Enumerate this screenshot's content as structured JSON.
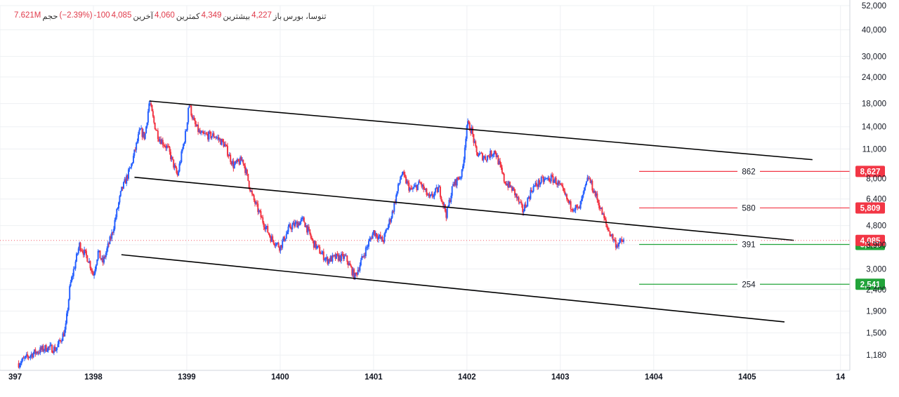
{
  "legend": {
    "symbol": "تنوسا، بورس",
    "open_label": "باز",
    "open": "4,227",
    "high_label": "بیشترین",
    "high": "4,349",
    "low_label": "کمترین",
    "low": "4,060",
    "close_label": "آخرین",
    "close": "4,085",
    "change": "-100",
    "change_pct": "(−2.39%)",
    "volume_label": "حجم",
    "volume": "7.621M"
  },
  "colors": {
    "up": "#2962ff",
    "down": "#f23645",
    "resistance": "#f23645",
    "support": "#22a43a",
    "channel": "#000000",
    "axis_text": "#131722",
    "grid": "#eef0f3"
  },
  "chart_data": {
    "type": "candlestick",
    "y_scale": "log",
    "ylim": [
      1000,
      52000
    ],
    "y_ticks": [
      "1,180",
      "1,500",
      "1,900",
      "2,400",
      "3,000",
      "3,900",
      "4,800",
      "6,400",
      "8,000",
      "11,000",
      "14,000",
      "18,000",
      "24,000",
      "30,000",
      "40,000",
      "52,000"
    ],
    "y_tick_values": [
      1180,
      1500,
      1900,
      2400,
      3000,
      3900,
      4800,
      6400,
      8000,
      11000,
      14000,
      18000,
      24000,
      30000,
      40000,
      52000
    ],
    "x_ticks": [
      "397",
      "1398",
      "1399",
      "1400",
      "1401",
      "1402",
      "1403",
      "1404",
      "1405",
      "14"
    ],
    "x_tick_values": [
      1397,
      1398,
      1399,
      1400,
      1401,
      1402,
      1403,
      1404,
      1405,
      1406
    ],
    "xlim": [
      1397,
      1406.1
    ],
    "price_path": [
      [
        1397.2,
        1080
      ],
      [
        1397.35,
        1200
      ],
      [
        1397.5,
        1280
      ],
      [
        1397.6,
        1260
      ],
      [
        1397.7,
        1550
      ],
      [
        1397.75,
        2500
      ],
      [
        1397.85,
        3900
      ],
      [
        1397.95,
        3300
      ],
      [
        1398.0,
        2800
      ],
      [
        1398.05,
        3600
      ],
      [
        1398.1,
        3200
      ],
      [
        1398.2,
        4400
      ],
      [
        1398.3,
        7000
      ],
      [
        1398.4,
        9000
      ],
      [
        1398.5,
        13500
      ],
      [
        1398.55,
        12500
      ],
      [
        1398.6,
        18500
      ],
      [
        1398.65,
        14500
      ],
      [
        1398.7,
        12500
      ],
      [
        1398.8,
        11000
      ],
      [
        1398.9,
        8200
      ],
      [
        1399.0,
        14000
      ],
      [
        1399.02,
        18200
      ],
      [
        1399.08,
        14500
      ],
      [
        1399.15,
        12800
      ],
      [
        1399.3,
        12700
      ],
      [
        1399.4,
        11600
      ],
      [
        1399.5,
        9200
      ],
      [
        1399.6,
        9800
      ],
      [
        1399.7,
        6600
      ],
      [
        1399.8,
        5200
      ],
      [
        1399.9,
        4200
      ],
      [
        1400.0,
        3800
      ],
      [
        1400.1,
        4700
      ],
      [
        1400.25,
        5100
      ],
      [
        1400.35,
        4000
      ],
      [
        1400.5,
        3300
      ],
      [
        1400.6,
        3400
      ],
      [
        1400.7,
        3400
      ],
      [
        1400.8,
        2750
      ],
      [
        1400.9,
        3550
      ],
      [
        1401.0,
        4500
      ],
      [
        1401.1,
        4050
      ],
      [
        1401.2,
        5500
      ],
      [
        1401.3,
        8500
      ],
      [
        1401.4,
        7000
      ],
      [
        1401.5,
        7600
      ],
      [
        1401.6,
        6400
      ],
      [
        1401.7,
        7200
      ],
      [
        1401.78,
        5400
      ],
      [
        1401.85,
        7400
      ],
      [
        1401.95,
        8500
      ],
      [
        1402.0,
        14500
      ],
      [
        1402.05,
        13500
      ],
      [
        1402.1,
        10500
      ],
      [
        1402.2,
        10000
      ],
      [
        1402.3,
        10800
      ],
      [
        1402.4,
        7800
      ],
      [
        1402.5,
        7000
      ],
      [
        1402.6,
        5600
      ],
      [
        1402.7,
        7200
      ],
      [
        1402.8,
        7800
      ],
      [
        1402.9,
        8000
      ],
      [
        1402.95,
        7800
      ],
      [
        1403.0,
        7300
      ],
      [
        1403.1,
        6000
      ],
      [
        1403.2,
        5700
      ],
      [
        1403.3,
        8100
      ],
      [
        1403.4,
        6300
      ],
      [
        1403.5,
        4700
      ],
      [
        1403.6,
        3900
      ],
      [
        1403.68,
        4085
      ]
    ],
    "channel_lines": [
      {
        "name": "upper",
        "points": [
          [
            1398.6,
            18500
          ],
          [
            1405.7,
            9800
          ]
        ]
      },
      {
        "name": "middle",
        "points": [
          [
            1398.44,
            8100
          ],
          [
            1405.5,
            4090
          ]
        ]
      },
      {
        "name": "lower",
        "points": [
          [
            1398.3,
            3500
          ],
          [
            1405.4,
            1690
          ]
        ]
      }
    ],
    "levels": [
      {
        "label": "862",
        "price_label": "8,627",
        "value": 8627,
        "kind": "resistance"
      },
      {
        "label": "580",
        "price_label": "5,809",
        "value": 5809,
        "kind": "resistance"
      },
      {
        "label": "391",
        "price_label": "3,912",
        "value": 3912,
        "kind": "support"
      },
      {
        "label": "254",
        "price_label": "2,541",
        "value": 2541,
        "kind": "support"
      }
    ],
    "last_price": {
      "label": "4,085",
      "value": 4085
    }
  }
}
